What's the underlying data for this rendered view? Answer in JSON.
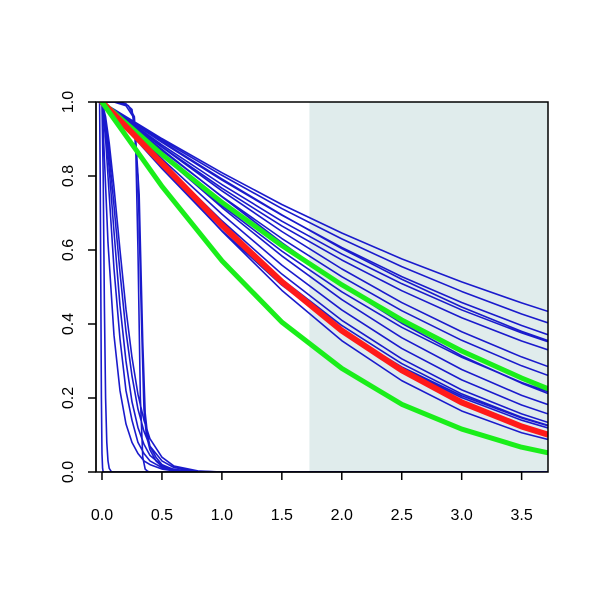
{
  "chart_data": {
    "type": "line",
    "title": "",
    "xlabel": "",
    "ylabel": "",
    "xlim": [
      -0.05,
      3.72
    ],
    "ylim": [
      0.0,
      1.0
    ],
    "x_ticks": [
      0.0,
      0.5,
      1.0,
      1.5,
      2.0,
      2.5,
      3.0,
      3.5
    ],
    "y_ticks": [
      0.0,
      0.2,
      0.4,
      0.6,
      0.8,
      1.0
    ],
    "x_tick_labels": [
      "0.0",
      "0.5",
      "1.0",
      "1.5",
      "2.0",
      "2.5",
      "3.0",
      "3.5"
    ],
    "y_tick_labels": [
      "0.0",
      "0.2",
      "0.4",
      "0.6",
      "0.8",
      "1.0"
    ],
    "grid": false,
    "legend": "none",
    "shaded_region": {
      "x_from": 1.73,
      "x_to": 3.72,
      "color": "#e0ecec"
    },
    "colors": {
      "blue": "#1a1acc",
      "red": "#ff1a1a",
      "green": "#1aee1a"
    },
    "series": [
      {
        "color": "blue",
        "width": 1.6,
        "x": [
          0,
          0.5,
          1,
          1.5,
          2,
          2.5,
          3,
          3.5,
          3.72
        ],
        "y": [
          1,
          0.901,
          0.809,
          0.723,
          0.646,
          0.576,
          0.514,
          0.457,
          0.434
        ]
      },
      {
        "color": "blue",
        "width": 1.6,
        "x": [
          0,
          0.5,
          1,
          1.5,
          2,
          2.5,
          3,
          3.5,
          3.72
        ],
        "y": [
          1,
          0.897,
          0.802,
          0.712,
          0.63,
          0.555,
          0.488,
          0.427,
          0.403
        ]
      },
      {
        "color": "blue",
        "width": 1.6,
        "x": [
          0,
          0.5,
          1,
          1.5,
          2,
          2.5,
          3,
          3.5,
          3.72
        ],
        "y": [
          1,
          0.891,
          0.789,
          0.694,
          0.607,
          0.528,
          0.458,
          0.396,
          0.371
        ]
      },
      {
        "color": "blue",
        "width": 1.6,
        "x": [
          0,
          0.5,
          1,
          1.5,
          2,
          2.5,
          3,
          3.5,
          3.72
        ],
        "y": [
          1,
          0.893,
          0.792,
          0.695,
          0.604,
          0.521,
          0.446,
          0.38,
          0.355
        ]
      },
      {
        "color": "blue",
        "width": 1.6,
        "x": [
          0,
          0.5,
          1,
          1.5,
          2,
          2.5,
          3,
          3.5,
          3.72
        ],
        "y": [
          1,
          0.884,
          0.777,
          0.678,
          0.589,
          0.509,
          0.438,
          0.376,
          0.352
        ]
      },
      {
        "color": "blue",
        "width": 1.6,
        "x": [
          0,
          0.5,
          1,
          1.5,
          2,
          2.5,
          3,
          3.5,
          3.72
        ],
        "y": [
          1,
          0.879,
          0.767,
          0.665,
          0.573,
          0.49,
          0.417,
          0.354,
          0.33
        ]
      },
      {
        "color": "blue",
        "width": 1.6,
        "x": [
          0,
          0.5,
          1,
          1.5,
          2,
          2.5,
          3,
          3.5,
          3.72
        ],
        "y": [
          1,
          0.878,
          0.76,
          0.65,
          0.549,
          0.458,
          0.379,
          0.311,
          0.285
        ]
      },
      {
        "color": "blue",
        "width": 1.6,
        "x": [
          0,
          0.5,
          1,
          1.5,
          2,
          2.5,
          3,
          3.5,
          3.72
        ],
        "y": [
          1,
          0.869,
          0.745,
          0.631,
          0.528,
          0.436,
          0.356,
          0.287,
          0.261
        ]
      },
      {
        "color": "blue",
        "width": 1.6,
        "x": [
          0,
          0.5,
          1,
          1.5,
          2,
          2.5,
          3,
          3.5,
          3.72
        ],
        "y": [
          1,
          0.872,
          0.744,
          0.62,
          0.504,
          0.402,
          0.314,
          0.24,
          0.212
        ]
      },
      {
        "color": "blue",
        "width": 1.6,
        "x": [
          0,
          0.5,
          1,
          1.5,
          2,
          2.5,
          3,
          3.5,
          3.72
        ],
        "y": [
          1,
          0.856,
          0.72,
          0.597,
          0.487,
          0.391,
          0.31,
          0.242,
          0.217
        ]
      },
      {
        "color": "blue",
        "width": 1.6,
        "x": [
          0,
          0.5,
          1,
          1.5,
          2,
          2.5,
          3,
          3.5,
          3.72
        ],
        "y": [
          1,
          0.856,
          0.715,
          0.584,
          0.466,
          0.363,
          0.277,
          0.207,
          0.182
        ]
      },
      {
        "color": "blue",
        "width": 1.6,
        "x": [
          0,
          0.5,
          1,
          1.5,
          2,
          2.5,
          3,
          3.5,
          3.72
        ],
        "y": [
          1,
          0.846,
          0.697,
          0.559,
          0.438,
          0.334,
          0.249,
          0.181,
          0.157
        ]
      },
      {
        "color": "blue",
        "width": 1.6,
        "x": [
          0,
          0.5,
          1,
          1.5,
          2,
          2.5,
          3,
          3.5,
          3.72
        ],
        "y": [
          1,
          0.837,
          0.679,
          0.535,
          0.41,
          0.306,
          0.222,
          0.157,
          0.134
        ]
      },
      {
        "color": "blue",
        "width": 1.6,
        "x": [
          0,
          0.5,
          1,
          1.5,
          2,
          2.5,
          3,
          3.5,
          3.72
        ],
        "y": [
          1,
          0.83,
          0.667,
          0.521,
          0.396,
          0.293,
          0.211,
          0.148,
          0.126
        ]
      },
      {
        "color": "blue",
        "width": 1.6,
        "x": [
          0,
          0.5,
          1,
          1.5,
          2,
          2.5,
          3,
          3.5,
          3.72
        ],
        "y": [
          1,
          0.82,
          0.652,
          0.505,
          0.383,
          0.284,
          0.206,
          0.146,
          0.125
        ]
      },
      {
        "color": "blue",
        "width": 1.6,
        "x": [
          0,
          0.5,
          1,
          1.5,
          2,
          2.5,
          3,
          3.5,
          3.72
        ],
        "y": [
          1,
          0.828,
          0.66,
          0.51,
          0.384,
          0.281,
          0.201,
          0.14,
          0.119
        ]
      },
      {
        "color": "blue",
        "width": 1.6,
        "x": [
          0,
          0.5,
          1,
          1.5,
          2,
          2.5,
          3,
          3.5,
          3.72
        ],
        "y": [
          1,
          0.826,
          0.651,
          0.491,
          0.355,
          0.247,
          0.165,
          0.106,
          0.088
        ]
      },
      {
        "color": "blue",
        "width": 1.6,
        "x": [
          0,
          0.02,
          0.05,
          0.1,
          0.15,
          0.2,
          0.25,
          0.3,
          0.35,
          0.4,
          0.5,
          0.6,
          0.8,
          1.0,
          3.72
        ],
        "y": [
          1,
          0.85,
          0.62,
          0.37,
          0.22,
          0.13,
          0.08,
          0.05,
          0.03,
          0.02,
          0.008,
          0.003,
          0,
          0,
          0
        ]
      },
      {
        "color": "blue",
        "width": 1.6,
        "x": [
          0,
          0.03,
          0.06,
          0.1,
          0.15,
          0.2,
          0.25,
          0.3,
          0.35,
          0.4,
          0.5,
          0.6,
          0.8,
          1.0,
          3.72
        ],
        "y": [
          1,
          0.9,
          0.75,
          0.55,
          0.36,
          0.22,
          0.14,
          0.08,
          0.05,
          0.03,
          0.012,
          0.005,
          0.001,
          0,
          0
        ]
      },
      {
        "color": "blue",
        "width": 1.6,
        "x": [
          0,
          0.03,
          0.06,
          0.1,
          0.15,
          0.2,
          0.25,
          0.3,
          0.35,
          0.4,
          0.5,
          0.6,
          0.8,
          1.0,
          3.72
        ],
        "y": [
          1,
          0.93,
          0.82,
          0.65,
          0.45,
          0.3,
          0.19,
          0.12,
          0.075,
          0.045,
          0.018,
          0.007,
          0.001,
          0,
          0
        ]
      },
      {
        "color": "blue",
        "width": 1.6,
        "x": [
          0,
          0.03,
          0.06,
          0.1,
          0.15,
          0.2,
          0.25,
          0.3,
          0.35,
          0.4,
          0.5,
          0.6,
          0.8,
          1.0,
          3.72
        ],
        "y": [
          1,
          0.95,
          0.86,
          0.72,
          0.54,
          0.38,
          0.26,
          0.17,
          0.11,
          0.07,
          0.03,
          0.012,
          0.002,
          0,
          0
        ]
      },
      {
        "color": "blue",
        "width": 1.6,
        "x": [
          0,
          0.03,
          0.06,
          0.1,
          0.15,
          0.2,
          0.25,
          0.3,
          0.35,
          0.4,
          0.5,
          0.6,
          0.8,
          1.0,
          3.72
        ],
        "y": [
          1,
          0.96,
          0.89,
          0.77,
          0.6,
          0.44,
          0.31,
          0.21,
          0.14,
          0.09,
          0.04,
          0.016,
          0.003,
          0,
          0
        ]
      },
      {
        "color": "blue",
        "width": 1.6,
        "x": [
          -0.03,
          -0.02,
          -0.015,
          -0.01,
          -0.005,
          0.0,
          0.005,
          0.01,
          0.02,
          0.03,
          0.05,
          3.72
        ],
        "y": [
          1,
          1,
          0.8,
          0.5,
          0.2,
          0.05,
          0.01,
          0,
          0,
          0,
          0,
          0
        ]
      },
      {
        "color": "blue",
        "width": 1.6,
        "x": [
          -0.01,
          0,
          0.01,
          0.02,
          0.03,
          0.04,
          0.05,
          0.06,
          0.08,
          0.1,
          3.72
        ],
        "y": [
          1,
          0.99,
          0.8,
          0.45,
          0.2,
          0.08,
          0.03,
          0.01,
          0,
          0,
          0
        ]
      },
      {
        "color": "blue",
        "width": 1.6,
        "x": [
          0,
          0.1,
          0.2,
          0.25,
          0.28,
          0.3,
          0.32,
          0.34,
          0.36,
          0.38,
          0.4,
          0.45,
          0.5,
          0.6,
          0.8,
          1.0,
          3.72
        ],
        "y": [
          1,
          1,
          0.995,
          0.98,
          0.9,
          0.6,
          0.2,
          0.04,
          0.008,
          0.002,
          0,
          0,
          0,
          0,
          0,
          0,
          0
        ]
      },
      {
        "color": "blue",
        "width": 1.6,
        "x": [
          0,
          0.1,
          0.2,
          0.26,
          0.3,
          0.33,
          0.35,
          0.37,
          0.4,
          0.45,
          0.5,
          0.6,
          0.8,
          1.0,
          3.72
        ],
        "y": [
          1,
          1,
          0.99,
          0.96,
          0.8,
          0.4,
          0.17,
          0.1,
          0.06,
          0.03,
          0.015,
          0.005,
          0.001,
          0,
          0
        ]
      },
      {
        "color": "blue",
        "width": 1.6,
        "x": [
          0,
          0.15,
          0.22,
          0.27,
          0.31,
          0.34,
          0.36,
          0.38,
          0.4,
          0.45,
          0.5,
          0.6,
          0.8,
          1.0,
          3.72
        ],
        "y": [
          1,
          1,
          0.99,
          0.96,
          0.75,
          0.35,
          0.16,
          0.1,
          0.07,
          0.04,
          0.02,
          0.006,
          0.001,
          0,
          0
        ]
      },
      {
        "color": "green",
        "width": 5,
        "x": [
          0,
          0.5,
          1,
          1.5,
          2,
          2.5,
          3,
          3.5,
          3.72
        ],
        "y": [
          1,
          0.858,
          0.729,
          0.612,
          0.506,
          0.411,
          0.327,
          0.254,
          0.225
        ]
      },
      {
        "color": "red",
        "width": 6,
        "x": [
          0,
          0.5,
          1,
          1.5,
          2,
          2.5,
          3,
          3.5,
          3.72
        ],
        "y": [
          1,
          0.834,
          0.667,
          0.514,
          0.382,
          0.275,
          0.188,
          0.123,
          0.101
        ]
      },
      {
        "color": "green",
        "width": 5,
        "x": [
          0,
          0.5,
          1,
          1.5,
          2,
          2.5,
          3,
          3.5,
          3.72
        ],
        "y": [
          1,
          0.772,
          0.571,
          0.405,
          0.28,
          0.183,
          0.116,
          0.067,
          0.052
        ]
      }
    ]
  }
}
